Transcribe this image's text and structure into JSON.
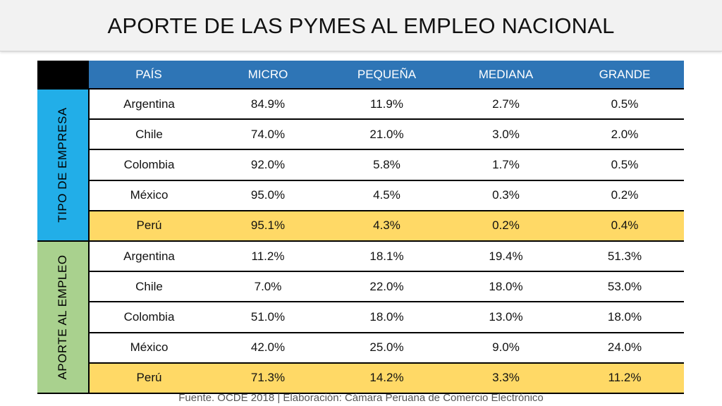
{
  "title": "APORTE DE LAS PYMES AL EMPLEO NACIONAL",
  "columns": [
    "PAÍS",
    "MICRO",
    "PEQUEÑA",
    "MEDIANA",
    "GRANDE"
  ],
  "groups": [
    {
      "label": "TIPO DE EMPRESA",
      "color": "#22aee8",
      "rows": [
        {
          "country": "Argentina",
          "values": [
            "84.9%",
            "11.9%",
            "2.7%",
            "0.5%"
          ],
          "highlight": false
        },
        {
          "country": "Chile",
          "values": [
            "74.0%",
            "21.0%",
            "3.0%",
            "2.0%"
          ],
          "highlight": false
        },
        {
          "country": "Colombia",
          "values": [
            "92.0%",
            "5.8%",
            "1.7%",
            "0.5%"
          ],
          "highlight": false
        },
        {
          "country": "México",
          "values": [
            "95.0%",
            "4.5%",
            "0.3%",
            "0.2%"
          ],
          "highlight": false
        },
        {
          "country": "Perú",
          "values": [
            "95.1%",
            "4.3%",
            "0.2%",
            "0.4%"
          ],
          "highlight": true
        }
      ]
    },
    {
      "label": "APORTE AL EMPLEO",
      "color": "#a9d18e",
      "rows": [
        {
          "country": "Argentina",
          "values": [
            "11.2%",
            "18.1%",
            "19.4%",
            "51.3%"
          ],
          "highlight": false
        },
        {
          "country": "Chile",
          "values": [
            "7.0%",
            "22.0%",
            "18.0%",
            "53.0%"
          ],
          "highlight": false
        },
        {
          "country": "Colombia",
          "values": [
            "51.0%",
            "18.0%",
            "13.0%",
            "18.0%"
          ],
          "highlight": false
        },
        {
          "country": "México",
          "values": [
            "42.0%",
            "25.0%",
            "9.0%",
            "24.0%"
          ],
          "highlight": false
        },
        {
          "country": "Perú",
          "values": [
            "71.3%",
            "14.2%",
            "3.3%",
            "11.2%"
          ],
          "highlight": true
        }
      ]
    }
  ],
  "colors": {
    "header": "#2e75b6",
    "highlight": "#ffd966"
  },
  "footer": "Fuente. OCDE 2018 | Elaboración: Cámara Peruana de Comercio Electrónico"
}
